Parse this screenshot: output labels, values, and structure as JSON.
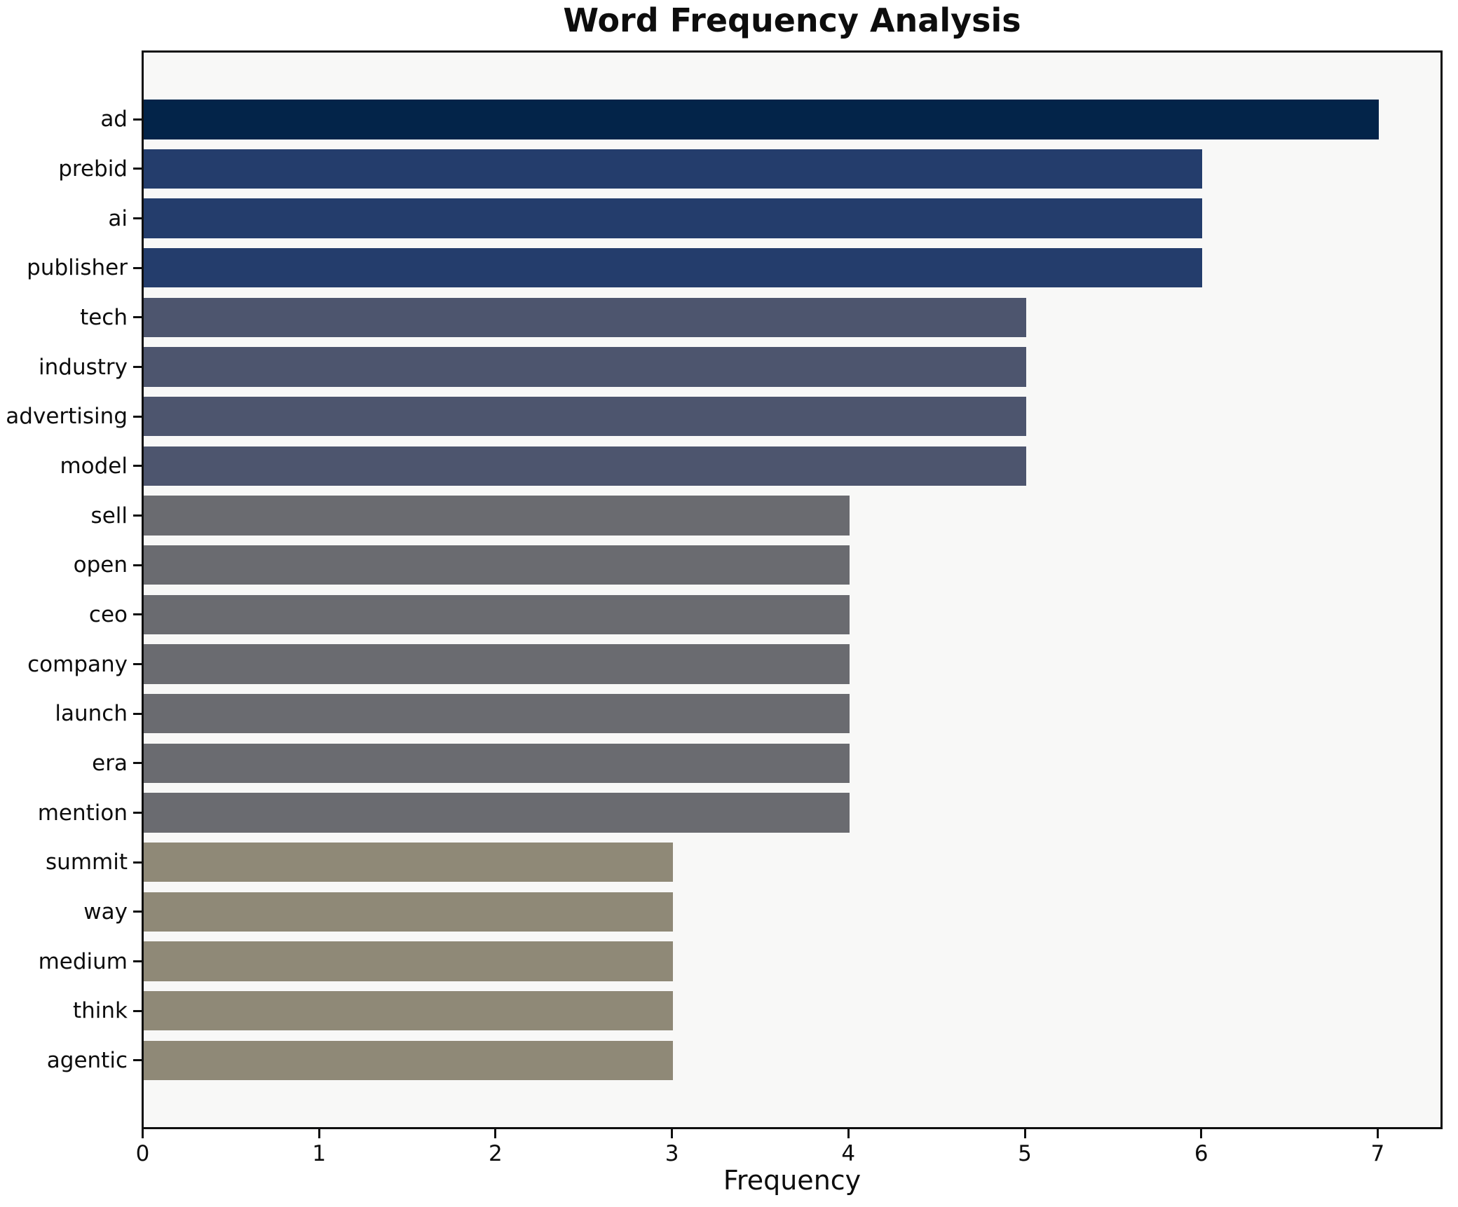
{
  "chart_data": {
    "type": "bar",
    "orientation": "horizontal",
    "title": "Word Frequency Analysis",
    "xlabel": "Frequency",
    "ylabel": "",
    "categories": [
      "ad",
      "prebid",
      "ai",
      "publisher",
      "tech",
      "industry",
      "advertising",
      "model",
      "sell",
      "open",
      "ceo",
      "company",
      "launch",
      "era",
      "mention",
      "summit",
      "way",
      "medium",
      "think",
      "agentic"
    ],
    "values": [
      7,
      6,
      6,
      6,
      5,
      5,
      5,
      5,
      4,
      4,
      4,
      4,
      4,
      4,
      4,
      3,
      3,
      3,
      3,
      3
    ],
    "bar_colors": [
      "#032449",
      "#243d6c",
      "#243d6c",
      "#243d6c",
      "#4d556e",
      "#4d556e",
      "#4d556e",
      "#4d556e",
      "#6a6b70",
      "#6a6b70",
      "#6a6b70",
      "#6a6b70",
      "#6a6b70",
      "#6a6b70",
      "#6a6b70",
      "#8f8977",
      "#8f8977",
      "#8f8977",
      "#8f8977",
      "#8f8977"
    ],
    "xticks": [
      "0",
      "1",
      "2",
      "3",
      "4",
      "5",
      "6",
      "7"
    ],
    "xlim": [
      0,
      7.35
    ],
    "grid": false,
    "legend_position": "none",
    "plot_background": "#f8f8f7",
    "figure_background": "#ffffff",
    "axis_color": "#0f0f0f"
  }
}
